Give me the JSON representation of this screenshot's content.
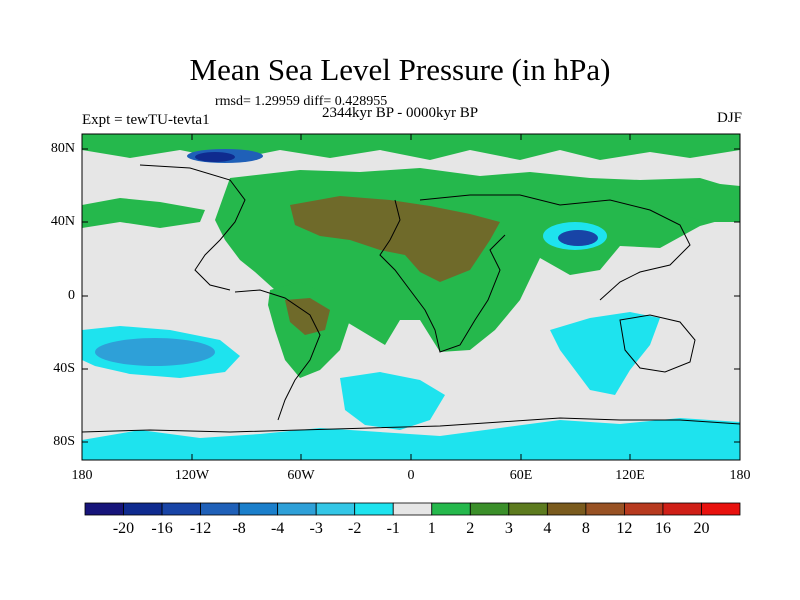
{
  "title": "Mean Sea Level Pressure (in hPa)",
  "stats": "rmsd= 1.29959 diff= 0.428955",
  "experiment": "Expt = tewTU-tevta1",
  "period": "2344kyr BP - 0000kyr BP",
  "season": "DJF",
  "lat_labels": [
    "80N",
    "40N",
    "0",
    "40S",
    "80S"
  ],
  "lon_labels": [
    "180",
    "120W",
    "60W",
    "0",
    "60E",
    "120E",
    "180"
  ],
  "colorbar": {
    "ticks": [
      "-20",
      "-16",
      "-12",
      "-8",
      "-4",
      "-3",
      "-2",
      "-1",
      "1",
      "2",
      "3",
      "4",
      "8",
      "12",
      "16",
      "20"
    ],
    "colors": [
      "#17157a",
      "#0f2b8f",
      "#1844a6",
      "#1f60b8",
      "#1b7fcb",
      "#2ea0d8",
      "#33c6e6",
      "#1ee3ee",
      "#e6e6e6",
      "#25b84c",
      "#3b8f2a",
      "#5d7b1f",
      "#7a5b1e",
      "#985224",
      "#b73a1f",
      "#cf1f17",
      "#e8110e"
    ]
  }
}
